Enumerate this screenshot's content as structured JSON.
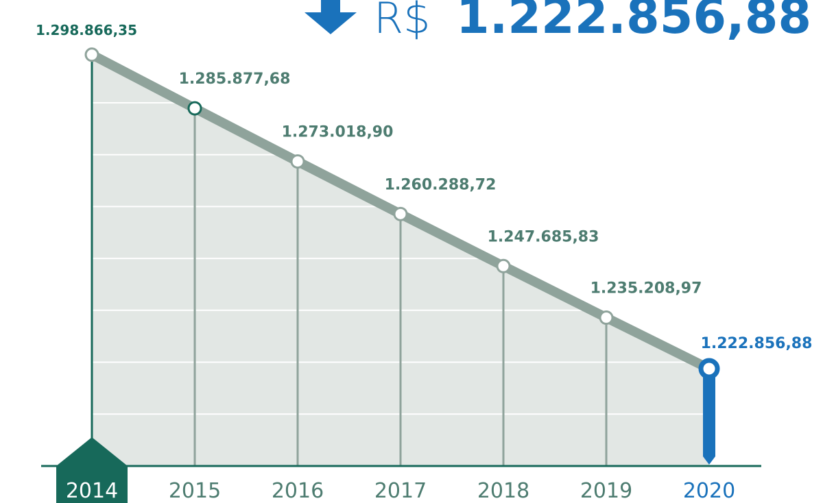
{
  "chart_data": {
    "type": "line",
    "header": {
      "currency": "R$",
      "headline": "1.222.856,88"
    },
    "categories": [
      "2014",
      "2015",
      "2016",
      "2017",
      "2018",
      "2019",
      "2020"
    ],
    "values": [
      1298866.35,
      1285877.68,
      1273018.9,
      1260288.72,
      1247685.83,
      1235208.97,
      1222856.88
    ],
    "value_labels": [
      "1.298.866,35",
      "1.285.877,68",
      "1.273.018,90",
      "1.260.288,72",
      "1.247.685,83",
      "1.235.208,97",
      "1.222.856,88"
    ],
    "ylim": [
      1199300,
      1312100
    ],
    "color": "#8fa39b",
    "fill_color": "#e2e7e4",
    "start_color": "#17695a",
    "label_color": "#4d7c70",
    "highlight_color": "#1a72bb",
    "grid": true
  }
}
